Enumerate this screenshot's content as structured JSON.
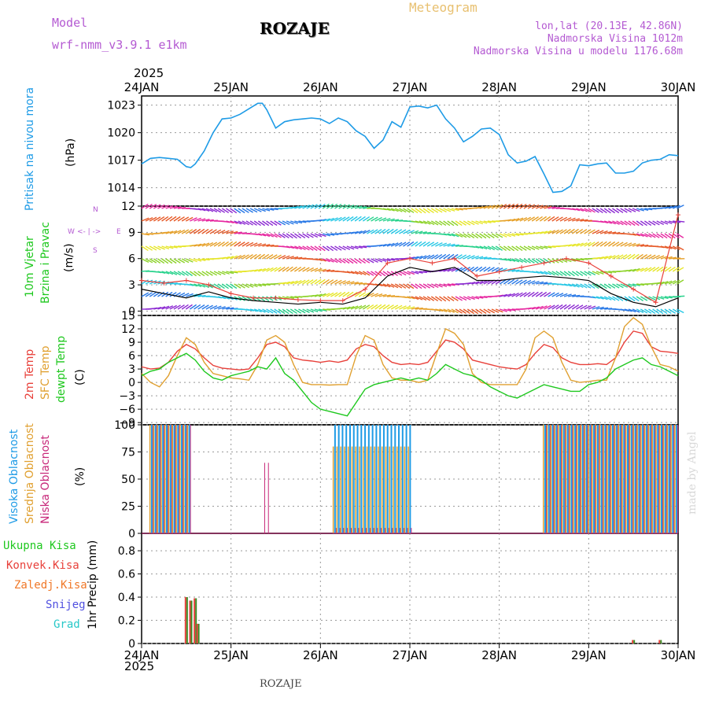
{
  "header": {
    "model_label": "Model",
    "model_name": "wrf-nmm_v3.9.1  e1km",
    "station": "ROZAJE",
    "meteogram": "Meteogram",
    "lonlat": "lon,lat (20.13E, 42.86N)",
    "elevation": "Nadmorska Visina 1012m",
    "model_elevation": "Nadmorska Visina u modelu 1176.68m",
    "footer_station": "ROZAJE",
    "watermark": "made by Angel"
  },
  "colors": {
    "pressure": "#1e9be6",
    "temp2m": "#e8403a",
    "sfc": "#e0a030",
    "dewpt": "#1ec81e",
    "vis": "#1e9be6",
    "sred": "#e0a030",
    "nisk": "#c8287a",
    "model": "#b45ad2",
    "meteo": "#e8c070",
    "wind_black": "#000000",
    "wind_red": "#e8403a"
  },
  "time_axis": {
    "year_top": "2025",
    "year_bottom": "2025",
    "labels": [
      "24JAN",
      "25JAN",
      "26JAN",
      "27JAN",
      "28JAN",
      "29JAN",
      "30JAN"
    ]
  },
  "panels": {
    "pressure": {
      "label": "Pritisak na nivou mora",
      "unit": "(hPa)"
    },
    "wind": {
      "label1": "10m Vjetar",
      "label2": "Brzina i Pravac",
      "unit": "(m/s)",
      "compass": {
        "n": "N",
        "w": "W",
        "e": "E",
        "s": "S",
        "arrows": "<- | ->"
      }
    },
    "temp": {
      "label1": "2m Temp",
      "label2": "SFC Temp",
      "label3": "dewpt Temp",
      "unit": "(C)"
    },
    "cloud": {
      "label1": "Visoka Oblacnost",
      "label2": "Srednja Oblacnost",
      "label3": "Niska Oblacnost",
      "unit": "(%)"
    },
    "precip": {
      "legend": [
        "Ukupna Kisa",
        "Konvek.Kisa",
        "Zaledj.Kisa",
        "Snijeg",
        "Grad"
      ],
      "legend_colors": [
        "#1ec81e",
        "#e8403a",
        "#f07828",
        "#5050e0",
        "#28c8c8"
      ],
      "unit": "1hr Precip (mm)"
    }
  },
  "chart_data": [
    {
      "type": "line",
      "name": "pressure",
      "x_day": [
        0,
        0.1,
        0.2,
        0.3,
        0.4,
        0.5,
        0.55,
        0.6,
        0.7,
        0.8,
        0.9,
        1.0,
        1.1,
        1.2,
        1.3,
        1.35,
        1.4,
        1.5,
        1.6,
        1.7,
        1.8,
        1.9,
        2.0,
        2.1,
        2.2,
        2.3,
        2.4,
        2.5,
        2.6,
        2.7,
        2.8,
        2.9,
        3.0,
        3.1,
        3.2,
        3.3,
        3.4,
        3.5,
        3.6,
        3.7,
        3.8,
        3.9,
        4.0,
        4.1,
        4.2,
        4.3,
        4.4,
        4.5,
        4.6,
        4.7,
        4.8,
        4.9,
        5.0,
        5.1,
        5.2,
        5.3,
        5.4,
        5.5,
        5.6,
        5.7,
        5.8,
        5.9,
        6.0
      ],
      "values": [
        1016.6,
        1017.2,
        1017.3,
        1017.2,
        1017.1,
        1016.3,
        1016.2,
        1016.6,
        1018.0,
        1020.0,
        1021.5,
        1021.6,
        1022.0,
        1022.6,
        1023.2,
        1023.2,
        1022.5,
        1020.5,
        1021.2,
        1021.4,
        1021.5,
        1021.6,
        1021.5,
        1021.0,
        1021.6,
        1021.2,
        1020.2,
        1019.6,
        1018.3,
        1019.2,
        1021.2,
        1020.6,
        1022.8,
        1022.9,
        1022.7,
        1023.0,
        1021.5,
        1020.5,
        1019.0,
        1019.6,
        1020.4,
        1020.5,
        1019.8,
        1017.6,
        1016.7,
        1016.9,
        1017.4,
        1015.5,
        1013.5,
        1013.6,
        1014.2,
        1016.5,
        1016.4,
        1016.6,
        1016.7,
        1015.6,
        1015.6,
        1015.8,
        1016.7,
        1017.0,
        1017.1,
        1017.6,
        1017.5
      ],
      "ylim": [
        1012,
        1024
      ],
      "yticks": [
        1014,
        1017,
        1020,
        1023
      ]
    },
    {
      "type": "line",
      "name": "wind",
      "ylim": [
        -0.5,
        12
      ],
      "yticks": [
        0,
        3,
        6,
        9,
        12
      ],
      "x_day": [
        0,
        0.25,
        0.5,
        0.75,
        1.0,
        1.25,
        1.5,
        1.75,
        2.0,
        2.25,
        2.5,
        2.75,
        3.0,
        3.25,
        3.5,
        3.75,
        4.0,
        4.25,
        4.5,
        4.75,
        5.0,
        5.25,
        5.5,
        5.75,
        6.0
      ],
      "series": [
        {
          "values": [
            2.5,
            2.0,
            1.5,
            2.2,
            1.5,
            1.2,
            1.0,
            0.8,
            1.0,
            0.8,
            1.5,
            4.0,
            5.0,
            4.5,
            5.0,
            3.5,
            3.5,
            3.8,
            4.0,
            3.8,
            3.5,
            2.0,
            1.0,
            0.5,
            1.5
          ]
        },
        {
          "values": [
            3.5,
            3.2,
            3.5,
            3.0,
            2.0,
            1.5,
            1.5,
            1.3,
            1.2,
            1.2,
            2.5,
            5.5,
            6.0,
            5.5,
            6.0,
            4.0,
            4.5,
            5.0,
            5.5,
            6.0,
            5.5,
            4.0,
            2.5,
            1.0,
            11.0
          ]
        }
      ]
    },
    {
      "type": "line",
      "name": "temperature",
      "ylim": [
        -9.5,
        15
      ],
      "yticks": [
        -9,
        -6,
        -3,
        0,
        3,
        6,
        9,
        12,
        15
      ],
      "x_day": [
        0,
        0.1,
        0.2,
        0.3,
        0.4,
        0.5,
        0.6,
        0.7,
        0.8,
        0.9,
        1.0,
        1.1,
        1.2,
        1.3,
        1.4,
        1.5,
        1.6,
        1.7,
        1.8,
        1.9,
        2.0,
        2.1,
        2.2,
        2.3,
        2.4,
        2.5,
        2.6,
        2.7,
        2.8,
        2.9,
        3.0,
        3.1,
        3.2,
        3.3,
        3.4,
        3.5,
        3.6,
        3.7,
        3.8,
        3.9,
        4.0,
        4.1,
        4.2,
        4.3,
        4.4,
        4.5,
        4.6,
        4.7,
        4.8,
        4.9,
        5.0,
        5.1,
        5.2,
        5.3,
        5.4,
        5.5,
        5.6,
        5.7,
        5.8,
        5.9,
        6.0
      ],
      "series": [
        {
          "values": [
            3.5,
            3.0,
            3.2,
            4.5,
            7.0,
            8.5,
            7.5,
            5.5,
            3.8,
            3.2,
            3.0,
            2.8,
            3.0,
            5.5,
            8.5,
            9.0,
            8.0,
            5.5,
            5.0,
            4.8,
            4.5,
            4.8,
            4.5,
            5.0,
            7.5,
            8.5,
            8.0,
            6.0,
            4.5,
            4.0,
            4.2,
            4.0,
            4.5,
            7.0,
            9.5,
            9.0,
            7.5,
            5.0,
            4.5,
            4.0,
            3.5,
            3.2,
            3.0,
            4.0,
            6.5,
            8.5,
            7.8,
            5.5,
            4.5,
            4.0,
            4.0,
            4.2,
            4.0,
            5.5,
            9.0,
            11.5,
            11.0,
            8.0,
            7.0,
            6.8,
            6.5
          ]
        },
        {
          "values": [
            2.0,
            0.0,
            -1.0,
            1.5,
            6.0,
            10.0,
            8.5,
            4.5,
            2.0,
            1.5,
            1.0,
            0.8,
            0.5,
            4.0,
            9.5,
            10.5,
            9.0,
            4.0,
            0.0,
            -0.5,
            -0.5,
            -0.6,
            -0.5,
            -0.5,
            6.0,
            10.5,
            9.5,
            4.0,
            1.0,
            0.5,
            0.5,
            0.0,
            0.5,
            6.5,
            12.0,
            11.0,
            8.5,
            2.0,
            0.0,
            -0.5,
            -0.5,
            -0.5,
            -0.5,
            3.0,
            10.0,
            11.5,
            10.0,
            4.5,
            0.5,
            0.0,
            0.2,
            0.5,
            0.5,
            5.5,
            12.5,
            14.5,
            13.0,
            8.0,
            4.0,
            3.5,
            2.5
          ]
        },
        {
          "values": [
            1.5,
            2.5,
            3.0,
            4.5,
            5.5,
            6.5,
            5.0,
            2.5,
            1.0,
            0.5,
            1.5,
            2.0,
            2.5,
            3.5,
            3.0,
            5.5,
            2.0,
            0.5,
            -2.0,
            -4.5,
            -6.0,
            -6.5,
            -7.0,
            -7.5,
            -4.5,
            -1.5,
            -0.5,
            0.0,
            0.5,
            1.0,
            0.5,
            1.0,
            0.5,
            2.0,
            4.0,
            3.0,
            2.0,
            1.5,
            0.5,
            -1.0,
            -2.0,
            -3.0,
            -3.5,
            -2.5,
            -1.5,
            -0.5,
            -1.0,
            -1.5,
            -2.0,
            -2.0,
            -0.5,
            0.0,
            1.0,
            3.0,
            4.0,
            5.0,
            5.5,
            4.0,
            3.5,
            2.5,
            1.5
          ]
        }
      ]
    },
    {
      "type": "bar",
      "name": "cloud",
      "ylim": [
        0,
        100
      ],
      "yticks": [
        0,
        25,
        50,
        75,
        100
      ],
      "groups": [
        {
          "start_day": 0.1,
          "end_day": 0.55,
          "high": 100,
          "mid": 100,
          "low": 100
        },
        {
          "start_day": 1.35,
          "end_day": 1.4,
          "low": 65
        },
        {
          "start_day": 2.15,
          "end_day": 3.0,
          "high": 100,
          "mid": 80,
          "low": 5
        },
        {
          "start_day": 4.5,
          "end_day": 6.0,
          "high": 100,
          "mid": 100,
          "low": 100
        }
      ]
    },
    {
      "type": "bar",
      "name": "precip",
      "ylim": [
        0,
        0.95
      ],
      "yticks": [
        0,
        0.2,
        0.4,
        0.6,
        0.8
      ],
      "bars": [
        {
          "day": 0.5,
          "value": 0.4
        },
        {
          "day": 0.55,
          "value": 0.37
        },
        {
          "day": 0.6,
          "value": 0.39
        },
        {
          "day": 0.63,
          "value": 0.17
        },
        {
          "day": 5.5,
          "value": 0.03
        },
        {
          "day": 5.8,
          "value": 0.03
        }
      ]
    }
  ]
}
